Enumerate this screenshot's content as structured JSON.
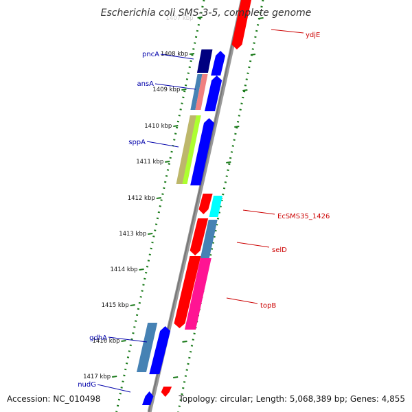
{
  "title": "Escherichia coli SMS-3-5, complete genome",
  "footer": {
    "accession": "Accession: NC_010498",
    "stats": "Topology: circular; Length: 5,068,389 bp; Genes: 4,855"
  },
  "colors": {
    "forward_label": "#0000aa",
    "reverse_label": "#cc0000",
    "backbone": "#888888",
    "ticks": "#1a7a1a"
  },
  "scale": {
    "unit": "kbp",
    "ticks": [
      "1407 kbp",
      "1408 kbp",
      "1409 kbp",
      "1410 kbp",
      "1411 kbp",
      "1412 kbp",
      "1413 kbp",
      "1414 kbp",
      "1415 kbp",
      "1416 kbp",
      "1417 kbp"
    ]
  },
  "genes": [
    {
      "name": "pncA",
      "strand": "forward",
      "labelled": true
    },
    {
      "name": "ansA",
      "strand": "forward",
      "labelled": true
    },
    {
      "name": "sppA",
      "strand": "forward",
      "labelled": true
    },
    {
      "name": "gdhA",
      "strand": "forward",
      "labelled": true
    },
    {
      "name": "nudG",
      "strand": "forward",
      "labelled": true
    },
    {
      "name": "ydjE",
      "strand": "reverse",
      "labelled": true
    },
    {
      "name": "EcSMS35_1426",
      "strand": "reverse",
      "labelled": true
    },
    {
      "name": "selD",
      "strand": "reverse",
      "labelled": true
    },
    {
      "name": "topB",
      "strand": "reverse",
      "labelled": true
    }
  ]
}
